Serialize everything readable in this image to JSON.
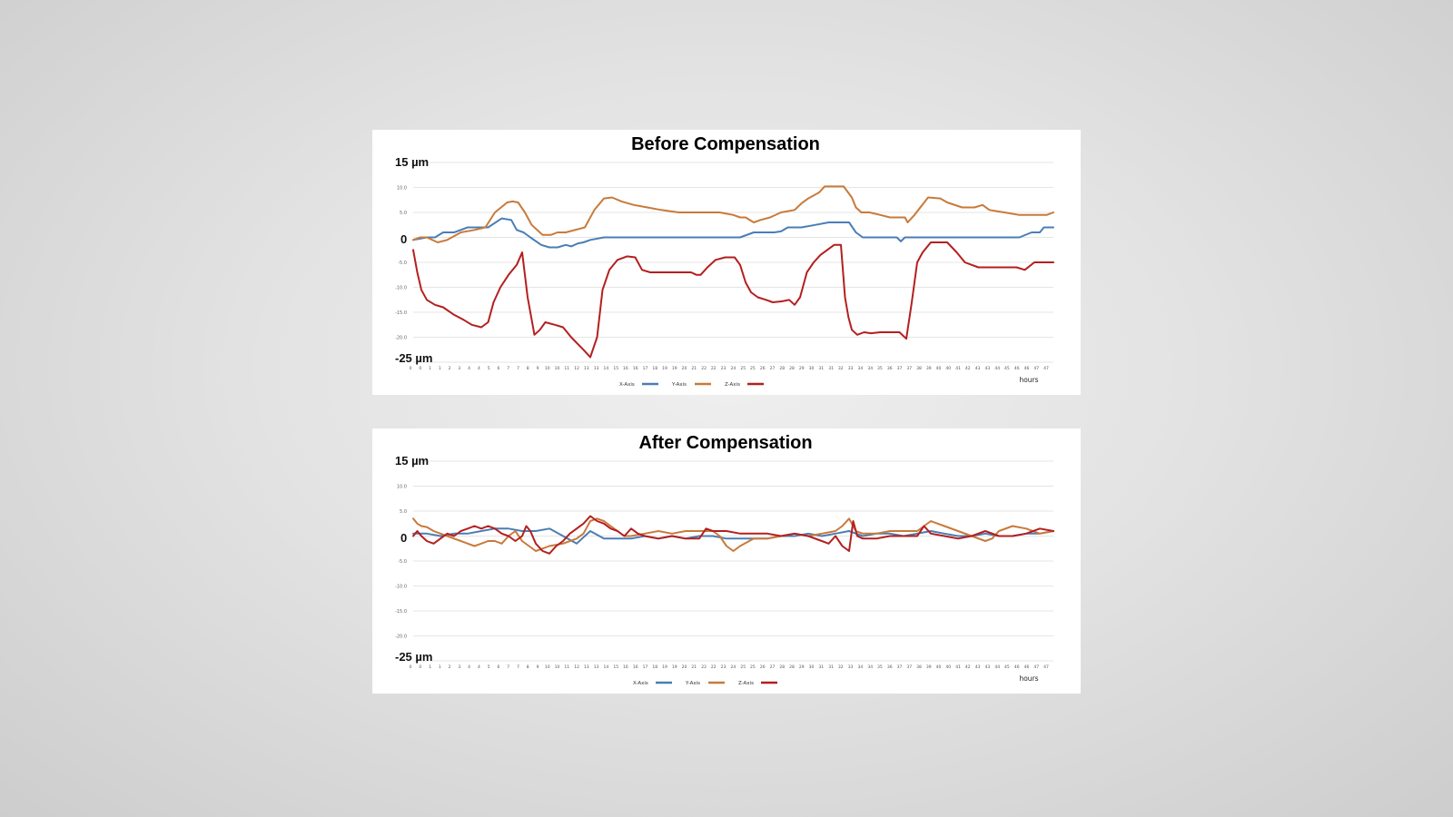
{
  "colors": {
    "x": "#4a7eb5",
    "y": "#c87a3a",
    "z": "#b41f1f"
  },
  "chart_data": [
    {
      "type": "line",
      "title": "Before Compensation",
      "xlabel": "hours",
      "ylabel_max": "15 µm",
      "ylabel_min": "-25 µm",
      "ylabel_zero": "0",
      "ylim": [
        -25,
        15
      ],
      "y_ticks": [
        "10.0",
        "5.0",
        "-5.0",
        "-10.0",
        "-15.0",
        "-20.0"
      ],
      "x_ticks": [
        "0",
        "0",
        "1",
        "1",
        "2",
        "3",
        "4",
        "4",
        "5",
        "6",
        "7",
        "7",
        "8",
        "9",
        "10",
        "10",
        "11",
        "12",
        "13",
        "13",
        "14",
        "15",
        "16",
        "16",
        "17",
        "18",
        "19",
        "19",
        "20",
        "21",
        "22",
        "22",
        "23",
        "24",
        "25",
        "25",
        "26",
        "27",
        "28",
        "28",
        "29",
        "30",
        "31",
        "31",
        "32",
        "33",
        "34",
        "34",
        "35",
        "36",
        "37",
        "37",
        "38",
        "39",
        "40",
        "40",
        "41",
        "42",
        "43",
        "43",
        "44",
        "45",
        "46",
        "46",
        "47",
        "47"
      ],
      "grid": true,
      "legend_position": "bottom",
      "series": [
        {
          "name": "X-Axis",
          "color_key": "x",
          "x": [
            0,
            1,
            1.6,
            2.2,
            3,
            4,
            5.5,
            6.5,
            7.2,
            7.6,
            8.1,
            8.6,
            9.4,
            10,
            10.6,
            11.2,
            11.6,
            12.1,
            12.5,
            13,
            14,
            15,
            16,
            17,
            24,
            25,
            26.5,
            27,
            27.5,
            28.5,
            29.5,
            30.5,
            32,
            32.5,
            33,
            35.5,
            35.8,
            36.1,
            36.5,
            44.5,
            45.4,
            46,
            46.3,
            47
          ],
          "y": [
            -0.5,
            0,
            0,
            1,
            1,
            2,
            2,
            3.8,
            3.5,
            1.5,
            1,
            0,
            -1.5,
            -2,
            -2,
            -1.5,
            -1.8,
            -1.2,
            -1,
            -0.5,
            0,
            0,
            0,
            0,
            0,
            1,
            1,
            1.2,
            2,
            2,
            2.5,
            3,
            3,
            1,
            0,
            0,
            -0.8,
            0,
            0,
            0,
            1,
            1,
            2,
            2
          ]
        },
        {
          "name": "Y-Axis",
          "color_key": "y",
          "x": [
            0,
            0.5,
            1,
            1.8,
            2.5,
            3.5,
            4.5,
            5.3,
            6,
            6.9,
            7.3,
            7.7,
            8.2,
            8.7,
            9.5,
            10.1,
            10.6,
            11.2,
            12.6,
            13.3,
            14,
            14.6,
            15.3,
            16.2,
            17.2,
            18.2,
            19.5,
            21,
            22.5,
            23.5,
            24,
            24.4,
            25,
            25.5,
            26.2,
            27,
            28,
            28.5,
            29,
            29.8,
            30.2,
            31.6,
            32.2,
            32.5,
            32.9,
            33.5,
            34.3,
            35,
            36.1,
            36.3,
            36.8,
            37.8,
            38.7,
            39.2,
            40.3,
            41.2,
            41.8,
            42.3,
            43.4,
            44.5,
            46.5,
            47
          ],
          "y": [
            -0.5,
            0,
            0,
            -1,
            -0.5,
            1,
            1.5,
            2,
            5,
            7,
            7.2,
            7,
            5,
            2.5,
            0.5,
            0.5,
            1,
            1,
            2,
            5.5,
            7.8,
            8,
            7.2,
            6.5,
            6,
            5.5,
            5,
            5,
            5,
            4.5,
            4,
            4,
            3,
            3.5,
            4,
            5,
            5.5,
            6.8,
            7.8,
            9,
            10.2,
            10.2,
            8,
            6,
            5,
            5,
            4.5,
            4,
            4,
            3,
            4.5,
            8,
            7.8,
            7,
            6,
            6,
            6.5,
            5.5,
            5,
            4.5,
            4.5,
            5
          ]
        },
        {
          "name": "Z-Axis",
          "color_key": "z",
          "x": [
            0,
            0.3,
            0.6,
            1,
            1.6,
            2.2,
            3,
            3.7,
            4.3,
            5,
            5.5,
            5.9,
            6.4,
            7,
            7.6,
            8,
            8.4,
            8.9,
            9.3,
            9.7,
            10.4,
            11,
            11.6,
            12.5,
            13,
            13.5,
            13.9,
            14.4,
            15,
            15.7,
            16.3,
            16.8,
            17.4,
            18.3,
            19.6,
            20.4,
            20.8,
            21.1,
            21.6,
            22.2,
            22.9,
            23.6,
            24,
            24.4,
            24.8,
            25.3,
            25.9,
            26.4,
            27.1,
            27.6,
            28,
            28.4,
            28.9,
            29.4,
            29.9,
            30.4,
            30.9,
            31.4,
            31.7,
            31.95,
            32.2,
            32.6,
            33.1,
            33.6,
            34.3,
            35,
            35.7,
            36.2,
            36.6,
            37,
            37.4,
            38,
            38.6,
            39.2,
            39.9,
            40.5,
            41,
            41.5,
            42.1,
            43.2,
            44.3,
            44.9,
            45.6,
            46.2,
            47
          ],
          "y": [
            -2.5,
            -7,
            -10.5,
            -12.5,
            -13.5,
            -14,
            -15.5,
            -16.5,
            -17.5,
            -18,
            -17,
            -13,
            -10,
            -7.5,
            -5.5,
            -3,
            -12,
            -19.5,
            -18.5,
            -17,
            -17.5,
            -18,
            -20,
            -22.5,
            -24,
            -20,
            -10.5,
            -6.5,
            -4.5,
            -3.8,
            -4,
            -6.5,
            -7,
            -7,
            -7,
            -7,
            -7.5,
            -7.5,
            -6,
            -4.5,
            -4,
            -4,
            -5.5,
            -9,
            -11,
            -12,
            -12.5,
            -13,
            -12.8,
            -12.5,
            -13.5,
            -12,
            -7,
            -5,
            -3.5,
            -2.5,
            -1.5,
            -1.5,
            -12,
            -16,
            -18.5,
            -19.5,
            -19,
            -19.2,
            -19,
            -19,
            -19,
            -20.3,
            -13,
            -5,
            -3,
            -1,
            -1,
            -1,
            -3,
            -5,
            -5.5,
            -6,
            -6,
            -6,
            -6,
            -6.5,
            -5,
            -5,
            -5
          ]
        }
      ]
    },
    {
      "type": "line",
      "title": "After Compensation",
      "xlabel": "hours",
      "ylabel_max": "15 µm",
      "ylabel_min": "-25 µm",
      "ylabel_zero": "0",
      "ylim": [
        -25,
        15
      ],
      "y_ticks": [
        "10.0",
        "5.0",
        "-5.0",
        "-10.0",
        "-15.0",
        "-20.0"
      ],
      "x_ticks": [
        "0",
        "0",
        "1",
        "1",
        "2",
        "3",
        "4",
        "4",
        "5",
        "6",
        "7",
        "7",
        "8",
        "9",
        "10",
        "10",
        "11",
        "12",
        "13",
        "13",
        "14",
        "15",
        "16",
        "16",
        "17",
        "18",
        "19",
        "19",
        "20",
        "21",
        "22",
        "22",
        "23",
        "24",
        "25",
        "25",
        "26",
        "27",
        "28",
        "28",
        "29",
        "30",
        "31",
        "31",
        "32",
        "33",
        "34",
        "34",
        "35",
        "36",
        "37",
        "37",
        "38",
        "39",
        "40",
        "40",
        "41",
        "42",
        "43",
        "43",
        "44",
        "45",
        "46",
        "46",
        "47",
        "47"
      ],
      "grid": true,
      "legend_position": "bottom",
      "series": [
        {
          "name": "X-Axis",
          "color_key": "x",
          "x": [
            0,
            1,
            2,
            3,
            4,
            5,
            6,
            7,
            8,
            9,
            10,
            11,
            12,
            13,
            14,
            15,
            16,
            17,
            18,
            19,
            20,
            21,
            22,
            23,
            24,
            25,
            26,
            27,
            28,
            29,
            30,
            31,
            32,
            33,
            34,
            35,
            36,
            37,
            38,
            39,
            40,
            41,
            42,
            43,
            44,
            45,
            46,
            47
          ],
          "y": [
            0.5,
            0.5,
            0,
            0.5,
            0.5,
            1,
            1.5,
            1.5,
            1,
            1,
            1.5,
            0,
            -1.5,
            1,
            -0.5,
            -0.5,
            -0.5,
            0,
            -0.5,
            0,
            -0.5,
            0,
            0,
            -0.5,
            -0.5,
            -0.5,
            -0.5,
            0,
            0,
            0.5,
            0,
            0.5,
            1,
            0,
            0.5,
            0.5,
            0,
            0.5,
            1,
            0.5,
            0,
            0,
            0.5,
            0,
            0,
            0.5,
            0.5,
            1
          ]
        },
        {
          "name": "Y-Axis",
          "color_key": "y",
          "x": [
            0,
            0.3,
            0.6,
            1,
            1.5,
            2,
            2.5,
            3,
            3.5,
            4,
            4.5,
            5,
            5.5,
            6,
            6.5,
            7,
            7.5,
            8,
            8.5,
            9,
            9.5,
            10,
            11,
            12,
            12.5,
            13,
            13.5,
            14,
            14.5,
            15,
            15.5,
            16,
            17,
            18,
            19,
            20,
            21,
            22,
            22.5,
            23,
            23.5,
            24,
            25,
            26,
            27,
            28,
            29,
            30,
            31,
            31.5,
            32,
            32.5,
            33,
            34,
            35,
            36,
            37,
            37.5,
            38,
            38.5,
            39,
            40,
            41,
            42,
            42.5,
            43,
            44,
            45,
            46,
            47
          ],
          "y": [
            3.5,
            2.5,
            2,
            1.8,
            1,
            0.5,
            0,
            -0.5,
            -1,
            -1.5,
            -2,
            -1.5,
            -1,
            -1,
            -1.5,
            0,
            1,
            -1,
            -2,
            -3,
            -2.5,
            -2,
            -1.5,
            -0.5,
            0.5,
            3,
            3.5,
            3,
            2,
            1,
            0,
            0,
            0.5,
            1,
            0.5,
            1,
            1,
            1,
            0,
            -2,
            -3,
            -2,
            -0.5,
            -0.5,
            0,
            0.5,
            0,
            0.5,
            1,
            2,
            3.5,
            1,
            0.5,
            0.5,
            1,
            1,
            1,
            2,
            3,
            2.5,
            2,
            1,
            0,
            -1,
            -0.5,
            1,
            2,
            1.5,
            0.5,
            1
          ]
        },
        {
          "name": "Z-Axis",
          "color_key": "z",
          "x": [
            0,
            0.3,
            0.6,
            1,
            1.5,
            2,
            2.5,
            3,
            3.5,
            4,
            4.5,
            5,
            5.5,
            6,
            6.5,
            7,
            7.5,
            8,
            8.3,
            8.6,
            9,
            9.5,
            10,
            10.5,
            11,
            11.5,
            12,
            12.5,
            13,
            13.5,
            14,
            14.5,
            15,
            15.5,
            16,
            16.5,
            17,
            18,
            19,
            20,
            21,
            21.5,
            22,
            23,
            24,
            25,
            26,
            27,
            28,
            29,
            30,
            30.5,
            31,
            31.5,
            32,
            32.3,
            32.6,
            33,
            34,
            35,
            36,
            37,
            37.5,
            38,
            39,
            40,
            41,
            42,
            43,
            44,
            45,
            46,
            47
          ],
          "y": [
            0,
            1,
            0,
            -1,
            -1.5,
            -0.5,
            0.5,
            0,
            1,
            1.5,
            2,
            1.5,
            2,
            1.5,
            0.5,
            0,
            -1,
            0,
            2,
            1,
            -1.5,
            -3,
            -3.5,
            -2,
            -1,
            0.5,
            1.5,
            2.5,
            4,
            3,
            2.5,
            1.5,
            1,
            0,
            1.5,
            0.5,
            0,
            -0.5,
            0,
            -0.5,
            -0.5,
            1.5,
            1,
            1,
            0.5,
            0.5,
            0.5,
            0,
            0.5,
            0,
            -1,
            -1.5,
            0,
            -2,
            -3,
            3,
            0,
            -0.5,
            -0.5,
            0,
            0,
            0,
            2,
            0.5,
            0,
            -0.5,
            0,
            1,
            0,
            0,
            0.5,
            1.5,
            1
          ]
        }
      ]
    }
  ]
}
